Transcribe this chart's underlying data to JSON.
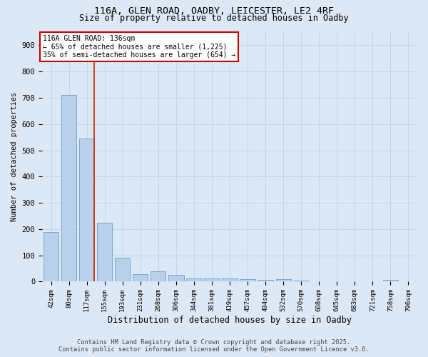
{
  "title_line1": "116A, GLEN ROAD, OADBY, LEICESTER, LE2 4RF",
  "title_line2": "Size of property relative to detached houses in Oadby",
  "xlabel": "Distribution of detached houses by size in Oadby",
  "ylabel": "Number of detached properties",
  "categories": [
    "42sqm",
    "80sqm",
    "117sqm",
    "155sqm",
    "193sqm",
    "231sqm",
    "268sqm",
    "306sqm",
    "344sqm",
    "381sqm",
    "419sqm",
    "457sqm",
    "494sqm",
    "532sqm",
    "570sqm",
    "608sqm",
    "645sqm",
    "683sqm",
    "721sqm",
    "758sqm",
    "796sqm"
  ],
  "values": [
    190,
    710,
    545,
    225,
    92,
    28,
    40,
    25,
    13,
    13,
    12,
    10,
    8,
    9,
    5,
    2,
    1,
    1,
    1,
    8,
    1
  ],
  "bar_color": "#b8d0ea",
  "bar_edge_color": "#6aa0cc",
  "grid_color": "#c8d4e8",
  "background_color": "#dce8f5",
  "red_line_index": 2,
  "annotation_text": "116A GLEN ROAD: 136sqm\n← 65% of detached houses are smaller (1,225)\n35% of semi-detached houses are larger (654) →",
  "annotation_box_color": "#ffffff",
  "annotation_box_edge_color": "#cc0000",
  "footnote1": "Contains HM Land Registry data © Crown copyright and database right 2025.",
  "footnote2": "Contains public sector information licensed under the Open Government Licence v3.0.",
  "ylim": [
    0,
    950
  ],
  "yticks": [
    0,
    100,
    200,
    300,
    400,
    500,
    600,
    700,
    800,
    900
  ]
}
